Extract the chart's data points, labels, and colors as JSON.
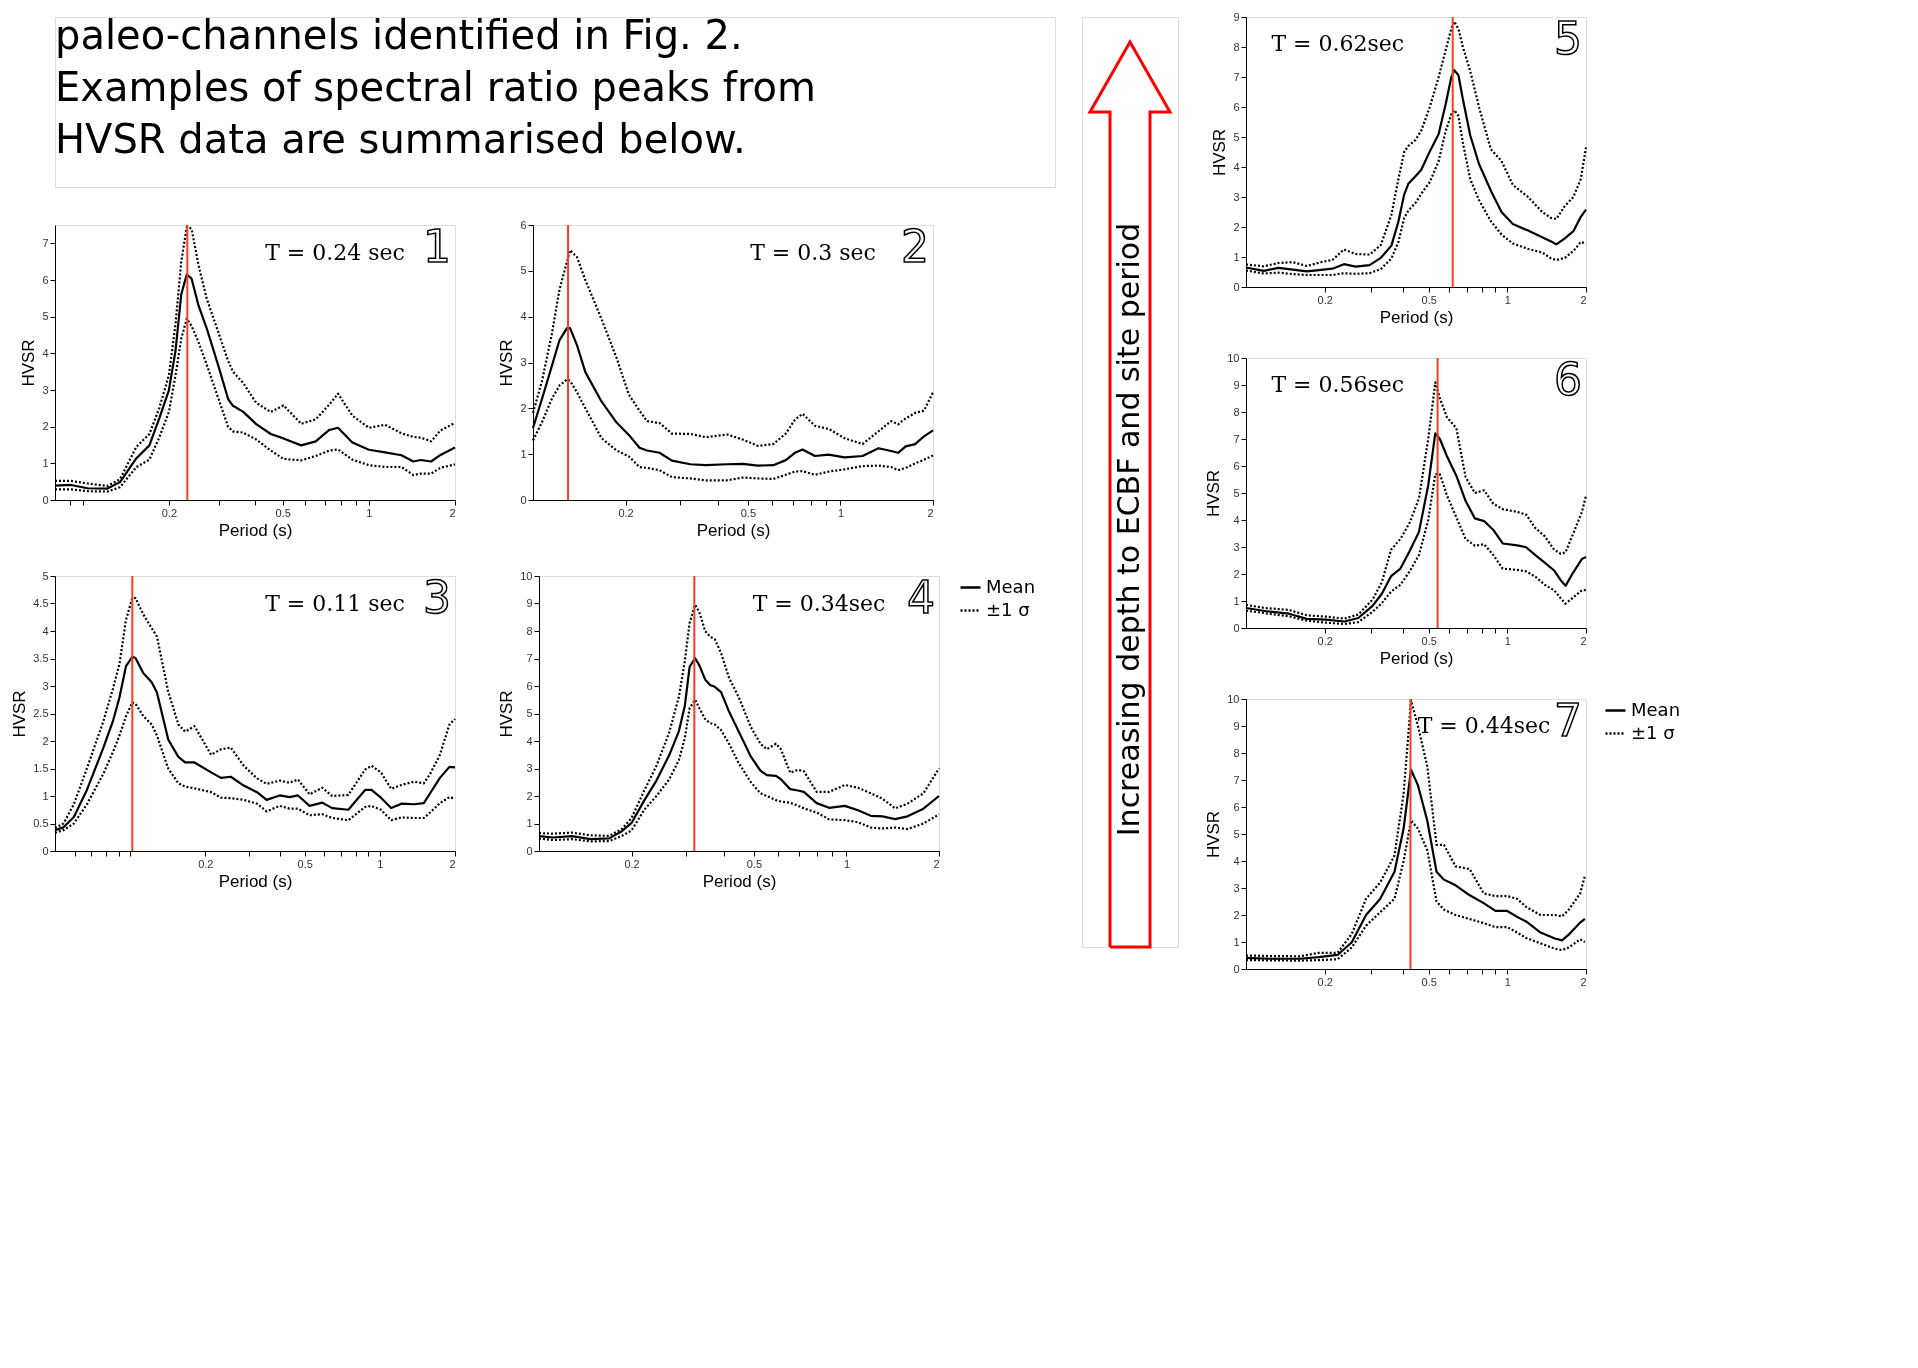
{
  "chart_data": [
    {
      "type": "other",
      "annotations": [
        "paleo-channels identified in Fig. 2.\nExamples of spectral ratio peaks from\nHVSR data are summarised below."
      ]
    },
    {
      "type": "line",
      "xlabel": "Period (s)",
      "ylabel": "HVSR",
      "log": "x",
      "grid": false,
      "xlim": [
        0.08,
        2
      ],
      "ylim": [
        0,
        7.5
      ],
      "xticks": [
        {
          "value": 0.09,
          "label": null
        },
        {
          "value": 0.1,
          "label": null
        },
        0.2,
        {
          "value": 0.3,
          "label": null
        },
        {
          "value": 0.4,
          "label": null
        },
        0.5,
        {
          "value": 0.6,
          "label": null
        },
        {
          "value": 0.7,
          "label": null
        },
        {
          "value": 0.8,
          "label": null
        },
        {
          "value": 0.9,
          "label": null
        },
        1,
        2
      ],
      "yticks": [
        0,
        1,
        2,
        3,
        4,
        5,
        6,
        7
      ],
      "ref_lines": [
        {
          "axis": "x",
          "value": 0.232,
          "color": "#ff3b1f"
        }
      ],
      "annotations": [
        "T = 0.24 sec",
        "1"
      ],
      "x": [
        0.08,
        0.091,
        0.104,
        0.122,
        0.135,
        0.154,
        0.171,
        0.185,
        0.2,
        0.211,
        0.221,
        0.231,
        0.24,
        0.254,
        0.271,
        0.297,
        0.322,
        0.335,
        0.363,
        0.404,
        0.454,
        0.503,
        0.58,
        0.652,
        0.727,
        0.78,
        0.876,
        1,
        1.14,
        1.3,
        1.43,
        1.52,
        1.65,
        1.78,
        2
      ],
      "series": [
        {
          "color": "#000000",
          "line_style": "solid",
          "values": [
            0.39,
            0.41,
            0.32,
            0.31,
            0.49,
            1.14,
            1.49,
            2.22,
            2.99,
            4.07,
            5.61,
            6.15,
            6.04,
            5.3,
            4.69,
            3.69,
            2.76,
            2.57,
            2.41,
            2.07,
            1.8,
            1.68,
            1.49,
            1.6,
            1.91,
            1.97,
            1.57,
            1.37,
            1.3,
            1.22,
            1.05,
            1.09,
            1.05,
            1.23,
            1.43
          ]
        },
        {
          "color": "#000000",
          "line_style": "dotted",
          "values": [
            0.52,
            0.52,
            0.45,
            0.38,
            0.57,
            1.45,
            1.8,
            2.5,
            3.4,
            4.8,
            6.5,
            7.45,
            7.4,
            6.4,
            5.5,
            4.6,
            3.8,
            3.5,
            3.2,
            2.65,
            2.4,
            2.58,
            2.08,
            2.2,
            2.6,
            2.9,
            2.3,
            1.97,
            2.05,
            1.82,
            1.72,
            1.7,
            1.6,
            1.9,
            2.1
          ]
        },
        {
          "color": "#000000",
          "line_style": "dotted",
          "values": [
            0.29,
            0.29,
            0.24,
            0.23,
            0.35,
            0.9,
            1.1,
            1.7,
            2.4,
            3.4,
            4.4,
            4.95,
            4.75,
            4.3,
            3.7,
            2.8,
            2.0,
            1.87,
            1.84,
            1.65,
            1.35,
            1.12,
            1.08,
            1.2,
            1.35,
            1.38,
            1.1,
            0.95,
            0.9,
            0.9,
            0.68,
            0.72,
            0.72,
            0.88,
            0.97
          ]
        }
      ]
    },
    {
      "type": "line",
      "xlabel": "Period (s)",
      "ylabel": "HVSR",
      "log": "x",
      "grid": false,
      "xlim": [
        0.1,
        2
      ],
      "ylim": [
        0,
        6
      ],
      "xticks": [
        0.2,
        {
          "value": 0.3,
          "label": null
        },
        {
          "value": 0.4,
          "label": null
        },
        0.5,
        {
          "value": 0.6,
          "label": null
        },
        {
          "value": 0.7,
          "label": null
        },
        {
          "value": 0.8,
          "label": null
        },
        {
          "value": 0.9,
          "label": null
        },
        1,
        2
      ],
      "yticks": [
        0,
        1,
        2,
        3,
        4,
        5,
        6
      ],
      "ref_lines": [
        {
          "axis": "x",
          "value": 0.13,
          "color": "#ff3b1f"
        }
      ],
      "annotations": [
        "T = 0.3 sec",
        "2"
      ],
      "x": [
        0.1,
        0.107,
        0.115,
        0.122,
        0.129,
        0.132,
        0.139,
        0.148,
        0.167,
        0.187,
        0.205,
        0.222,
        0.235,
        0.258,
        0.283,
        0.325,
        0.365,
        0.428,
        0.481,
        0.539,
        0.605,
        0.664,
        0.711,
        0.753,
        0.826,
        0.916,
        1.03,
        1.18,
        1.33,
        1.46,
        1.54,
        1.63,
        1.75,
        1.87,
        2
      ],
      "series": [
        {
          "color": "#000000",
          "line_style": "solid",
          "values": [
            1.57,
            2.21,
            2.91,
            3.49,
            3.75,
            3.75,
            3.38,
            2.79,
            2.15,
            1.69,
            1.42,
            1.14,
            1.08,
            1.03,
            0.86,
            0.78,
            0.76,
            0.78,
            0.79,
            0.75,
            0.76,
            0.87,
            1.03,
            1.1,
            0.96,
            0.99,
            0.93,
            0.96,
            1.13,
            1.07,
            1.03,
            1.17,
            1.22,
            1.39,
            1.52
          ]
        },
        {
          "color": "#000000",
          "line_style": "dotted",
          "values": [
            1.9,
            2.6,
            3.6,
            4.6,
            5.2,
            5.45,
            5.3,
            4.8,
            3.95,
            3.1,
            2.3,
            1.95,
            1.72,
            1.68,
            1.45,
            1.44,
            1.37,
            1.43,
            1.32,
            1.18,
            1.22,
            1.45,
            1.75,
            1.88,
            1.62,
            1.55,
            1.35,
            1.22,
            1.5,
            1.72,
            1.65,
            1.78,
            1.9,
            1.95,
            2.35
          ]
        },
        {
          "color": "#000000",
          "line_style": "dotted",
          "values": [
            1.3,
            1.7,
            2.2,
            2.5,
            2.63,
            2.6,
            2.35,
            2.0,
            1.35,
            1.08,
            0.95,
            0.72,
            0.7,
            0.65,
            0.5,
            0.47,
            0.43,
            0.43,
            0.49,
            0.47,
            0.46,
            0.55,
            0.62,
            0.63,
            0.55,
            0.62,
            0.67,
            0.74,
            0.75,
            0.72,
            0.65,
            0.7,
            0.8,
            0.88,
            0.97
          ]
        }
      ]
    },
    {
      "type": "line",
      "xlabel": "Period (s)",
      "ylabel": "HVSR",
      "log": "x",
      "grid": false,
      "xlim": [
        0.05,
        2
      ],
      "ylim": [
        0,
        5
      ],
      "xticks": [
        {
          "value": 0.06,
          "label": null
        },
        {
          "value": 0.07,
          "label": null
        },
        {
          "value": 0.08,
          "label": null
        },
        {
          "value": 0.09,
          "label": null
        },
        {
          "value": 0.1,
          "label": null
        },
        0.2,
        {
          "value": 0.3,
          "label": null
        },
        {
          "value": 0.4,
          "label": null
        },
        0.5,
        {
          "value": 0.6,
          "label": null
        },
        {
          "value": 0.7,
          "label": null
        },
        {
          "value": 0.8,
          "label": null
        },
        {
          "value": 0.9,
          "label": null
        },
        1,
        2
      ],
      "yticks": [
        0,
        0.5,
        1,
        1.5,
        2,
        2.5,
        3,
        3.5,
        4,
        4.5,
        5
      ],
      "ref_lines": [
        {
          "axis": "x",
          "value": 0.102,
          "color": "#ff3b1f"
        }
      ],
      "annotations": [
        "T = 0.11 sec",
        "3"
      ],
      "x": [
        0.05,
        0.0541,
        0.0595,
        0.0671,
        0.078,
        0.0853,
        0.0906,
        0.0962,
        0.102,
        0.105,
        0.113,
        0.122,
        0.128,
        0.142,
        0.156,
        0.166,
        0.181,
        0.211,
        0.231,
        0.253,
        0.285,
        0.322,
        0.352,
        0.397,
        0.435,
        0.47,
        0.523,
        0.588,
        0.644,
        0.748,
        0.873,
        0.926,
        1.01,
        1.11,
        1.22,
        1.37,
        1.5,
        1.59,
        1.74,
        1.9,
        2
      ],
      "series": [
        {
          "color": "#000000",
          "line_style": "solid",
          "values": [
            0.38,
            0.43,
            0.62,
            1.11,
            1.87,
            2.36,
            2.79,
            3.36,
            3.53,
            3.51,
            3.23,
            3.07,
            2.88,
            2.03,
            1.71,
            1.61,
            1.61,
            1.43,
            1.33,
            1.35,
            1.19,
            1.07,
            0.93,
            1.01,
            0.98,
            1.01,
            0.82,
            0.88,
            0.78,
            0.75,
            1.11,
            1.11,
            0.97,
            0.78,
            0.86,
            0.85,
            0.87,
            1.05,
            1.33,
            1.53,
            1.52
          ]
        },
        {
          "color": "#000000",
          "line_style": "dotted",
          "values": [
            0.42,
            0.5,
            0.85,
            1.5,
            2.35,
            2.95,
            3.4,
            4.2,
            4.6,
            4.6,
            4.3,
            4.05,
            3.9,
            2.9,
            2.3,
            2.17,
            2.27,
            1.75,
            1.85,
            1.88,
            1.55,
            1.32,
            1.22,
            1.28,
            1.24,
            1.3,
            1.03,
            1.15,
            1.0,
            1.02,
            1.48,
            1.55,
            1.43,
            1.13,
            1.2,
            1.26,
            1.23,
            1.4,
            1.75,
            2.3,
            2.4
          ]
        },
        {
          "color": "#000000",
          "line_style": "dotted",
          "values": [
            0.33,
            0.38,
            0.5,
            0.85,
            1.4,
            1.8,
            2.1,
            2.45,
            2.7,
            2.68,
            2.45,
            2.3,
            2.1,
            1.5,
            1.23,
            1.17,
            1.14,
            1.07,
            0.97,
            0.96,
            0.93,
            0.86,
            0.72,
            0.82,
            0.77,
            0.77,
            0.65,
            0.67,
            0.6,
            0.56,
            0.8,
            0.82,
            0.75,
            0.56,
            0.61,
            0.6,
            0.6,
            0.7,
            0.87,
            0.98,
            0.95
          ]
        }
      ]
    },
    {
      "type": "line",
      "xlabel": "Period (s)",
      "ylabel": "HVSR",
      "log": "x",
      "grid": false,
      "legend": "right",
      "xlim": [
        0.1,
        2
      ],
      "ylim": [
        0,
        10
      ],
      "xticks": [
        0.2,
        {
          "value": 0.3,
          "label": null
        },
        {
          "value": 0.4,
          "label": null
        },
        0.5,
        {
          "value": 0.6,
          "label": null
        },
        {
          "value": 0.7,
          "label": null
        },
        {
          "value": 0.8,
          "label": null
        },
        {
          "value": 0.9,
          "label": null
        },
        1,
        2
      ],
      "yticks": [
        0,
        1,
        2,
        3,
        4,
        5,
        6,
        7,
        8,
        9,
        10
      ],
      "ref_lines": [
        {
          "axis": "x",
          "value": 0.32,
          "color": "#ff3b1f"
        }
      ],
      "annotations": [
        "T = 0.34sec",
        "4"
      ],
      "x": [
        0.1,
        0.111,
        0.128,
        0.147,
        0.169,
        0.186,
        0.2,
        0.22,
        0.241,
        0.265,
        0.285,
        0.298,
        0.309,
        0.322,
        0.332,
        0.347,
        0.36,
        0.373,
        0.391,
        0.415,
        0.446,
        0.489,
        0.525,
        0.551,
        0.59,
        0.612,
        0.656,
        0.695,
        0.727,
        0.8,
        0.878,
        0.988,
        1.09,
        1.2,
        1.31,
        1.44,
        1.58,
        1.78,
        2
      ],
      "series": [
        {
          "name": "Mean",
          "color": "#000000",
          "line_style": "solid",
          "values": [
            0.54,
            0.49,
            0.54,
            0.43,
            0.46,
            0.72,
            1.02,
            1.84,
            2.56,
            3.48,
            4.35,
            5.27,
            6.7,
            7.01,
            6.76,
            6.24,
            6.04,
            5.97,
            5.78,
            5.07,
            4.35,
            3.43,
            2.92,
            2.76,
            2.73,
            2.61,
            2.25,
            2.2,
            2.15,
            1.74,
            1.57,
            1.64,
            1.48,
            1.28,
            1.26,
            1.16,
            1.26,
            1.54,
            2.0
          ]
        },
        {
          "name": "±1 σ",
          "color": "#000000",
          "line_style": "dotted",
          "values": [
            0.65,
            0.63,
            0.67,
            0.57,
            0.55,
            0.8,
            1.2,
            2.2,
            3.1,
            4.3,
            5.6,
            6.9,
            8.3,
            8.95,
            8.7,
            8.0,
            7.8,
            7.7,
            7.2,
            6.3,
            5.6,
            4.5,
            3.9,
            3.7,
            3.9,
            3.7,
            2.85,
            2.95,
            2.9,
            2.15,
            2.15,
            2.4,
            2.3,
            2.1,
            1.9,
            1.55,
            1.72,
            2.1,
            3.0
          ]
        },
        {
          "color": "#000000",
          "line_style": "dotted",
          "values": [
            0.45,
            0.4,
            0.43,
            0.35,
            0.36,
            0.55,
            0.75,
            1.5,
            2.0,
            2.6,
            3.3,
            4.1,
            5.2,
            5.5,
            5.2,
            4.8,
            4.65,
            4.6,
            4.4,
            3.9,
            3.2,
            2.5,
            2.1,
            2.0,
            1.85,
            1.8,
            1.75,
            1.65,
            1.55,
            1.4,
            1.15,
            1.12,
            1.05,
            0.85,
            0.82,
            0.85,
            0.8,
            1.0,
            1.33
          ]
        }
      ]
    },
    {
      "type": "other",
      "annotations": [
        "Increasing depth to ECBF and site period"
      ]
    },
    {
      "type": "line",
      "xlabel": "Period (s)",
      "ylabel": "HVSR",
      "log": "x",
      "grid": false,
      "xlim": [
        0.1,
        2
      ],
      "ylim": [
        0,
        9
      ],
      "xticks": [
        0.2,
        {
          "value": 0.3,
          "label": null
        },
        {
          "value": 0.4,
          "label": null
        },
        0.5,
        {
          "value": 0.6,
          "label": null
        },
        {
          "value": 0.7,
          "label": null
        },
        {
          "value": 0.8,
          "label": null
        },
        {
          "value": 0.9,
          "label": null
        },
        1,
        2
      ],
      "yticks": [
        0,
        1,
        2,
        3,
        4,
        5,
        6,
        7,
        8,
        9
      ],
      "ref_lines": [
        {
          "axis": "x",
          "value": 0.618,
          "color": "#ff3b1f"
        }
      ],
      "annotations": [
        "T = 0.62sec",
        "5"
      ],
      "x": [
        0.1,
        0.117,
        0.133,
        0.151,
        0.171,
        0.194,
        0.214,
        0.237,
        0.263,
        0.297,
        0.328,
        0.36,
        0.383,
        0.403,
        0.418,
        0.445,
        0.468,
        0.505,
        0.546,
        0.581,
        0.61,
        0.626,
        0.65,
        0.676,
        0.721,
        0.779,
        0.864,
        0.95,
        1.05,
        1.2,
        1.36,
        1.47,
        1.54,
        1.66,
        1.79,
        1.91,
        2
      ],
      "series": [
        {
          "color": "#000000",
          "line_style": "solid",
          "values": [
            0.65,
            0.54,
            0.64,
            0.58,
            0.52,
            0.57,
            0.61,
            0.76,
            0.68,
            0.73,
            0.97,
            1.38,
            2.18,
            3.08,
            3.44,
            3.69,
            3.9,
            4.52,
            5.1,
            6.1,
            6.98,
            7.23,
            7.06,
            6.26,
            5.06,
            4.1,
            3.22,
            2.5,
            2.1,
            1.88,
            1.66,
            1.52,
            1.42,
            1.62,
            1.86,
            2.34,
            2.58
          ]
        },
        {
          "color": "#000000",
          "line_style": "dotted",
          "values": [
            0.75,
            0.69,
            0.8,
            0.83,
            0.7,
            0.83,
            0.9,
            1.25,
            1.1,
            1.08,
            1.4,
            2.4,
            3.6,
            4.5,
            4.7,
            4.9,
            5.2,
            6.0,
            7.0,
            7.9,
            8.6,
            8.85,
            8.6,
            8.0,
            7.2,
            6.0,
            4.6,
            4.2,
            3.4,
            3.0,
            2.5,
            2.3,
            2.27,
            2.7,
            3.0,
            3.6,
            4.65
          ]
        },
        {
          "color": "#000000",
          "line_style": "dotted",
          "values": [
            0.55,
            0.45,
            0.48,
            0.43,
            0.4,
            0.4,
            0.4,
            0.46,
            0.44,
            0.46,
            0.6,
            0.95,
            1.5,
            2.3,
            2.55,
            2.8,
            3.1,
            3.5,
            4.2,
            5.2,
            5.75,
            5.9,
            5.7,
            4.8,
            3.6,
            2.9,
            2.2,
            1.75,
            1.45,
            1.27,
            1.15,
            0.95,
            0.9,
            0.97,
            1.2,
            1.5,
            1.45
          ]
        }
      ]
    },
    {
      "type": "line",
      "xlabel": "Period (s)",
      "ylabel": "HVSR",
      "log": "x",
      "grid": false,
      "xlim": [
        0.1,
        2
      ],
      "ylim": [
        0,
        10
      ],
      "xticks": [
        0.2,
        {
          "value": 0.3,
          "label": null
        },
        {
          "value": 0.4,
          "label": null
        },
        0.5,
        {
          "value": 0.6,
          "label": null
        },
        {
          "value": 0.7,
          "label": null
        },
        {
          "value": 0.8,
          "label": null
        },
        {
          "value": 0.9,
          "label": null
        },
        1,
        2
      ],
      "yticks": [
        0,
        1,
        2,
        3,
        4,
        5,
        6,
        7,
        8,
        9,
        10
      ],
      "ref_lines": [
        {
          "axis": "x",
          "value": 0.541,
          "color": "#ff3b1f"
        }
      ],
      "annotations": [
        "T = 0.56sec",
        "6"
      ],
      "x": [
        0.1,
        0.118,
        0.146,
        0.171,
        0.202,
        0.238,
        0.269,
        0.305,
        0.331,
        0.359,
        0.39,
        0.423,
        0.459,
        0.498,
        0.53,
        0.552,
        0.588,
        0.638,
        0.692,
        0.751,
        0.815,
        0.884,
        0.96,
        1.09,
        1.18,
        1.28,
        1.39,
        1.51,
        1.6,
        1.67,
        1.77,
        1.93,
        2
      ],
      "series": [
        {
          "color": "#000000",
          "line_style": "solid",
          "values": [
            0.74,
            0.63,
            0.53,
            0.34,
            0.31,
            0.24,
            0.37,
            0.82,
            1.27,
            1.92,
            2.2,
            2.85,
            3.56,
            5.28,
            7.21,
            7.0,
            6.35,
            5.64,
            4.71,
            4.06,
            3.96,
            3.63,
            3.13,
            3.06,
            2.99,
            2.7,
            2.42,
            2.13,
            1.77,
            1.56,
            1.99,
            2.56,
            2.63
          ]
        },
        {
          "color": "#000000",
          "line_style": "dotted",
          "values": [
            0.86,
            0.74,
            0.67,
            0.47,
            0.42,
            0.35,
            0.5,
            1.05,
            1.7,
            2.9,
            3.3,
            3.9,
            4.8,
            7.0,
            9.1,
            8.5,
            7.8,
            7.4,
            5.6,
            5.0,
            5.1,
            4.6,
            4.4,
            4.3,
            4.2,
            3.7,
            3.4,
            2.9,
            2.75,
            2.8,
            3.4,
            4.3,
            4.9
          ]
        },
        {
          "color": "#000000",
          "line_style": "dotted",
          "values": [
            0.64,
            0.55,
            0.43,
            0.27,
            0.2,
            0.15,
            0.22,
            0.6,
            0.92,
            1.35,
            1.6,
            2.1,
            2.7,
            4.0,
            5.7,
            5.7,
            4.9,
            4.1,
            3.3,
            3.05,
            3.1,
            2.7,
            2.2,
            2.15,
            2.1,
            1.9,
            1.6,
            1.4,
            1.1,
            0.9,
            1.1,
            1.4,
            1.4
          ]
        }
      ]
    },
    {
      "type": "line",
      "ylabel": "HVSR",
      "log": "x",
      "grid": false,
      "legend": "right",
      "xlim": [
        0.1,
        2
      ],
      "ylim": [
        0,
        10
      ],
      "xticks": [
        0.2,
        {
          "value": 0.3,
          "label": null
        },
        {
          "value": 0.4,
          "label": null
        },
        0.5,
        {
          "value": 0.6,
          "label": null
        },
        {
          "value": 0.7,
          "label": null
        },
        {
          "value": 0.8,
          "label": null
        },
        {
          "value": 0.9,
          "label": null
        },
        1,
        2
      ],
      "yticks": [
        0,
        1,
        2,
        3,
        4,
        5,
        6,
        7,
        8,
        9,
        10
      ],
      "ref_lines": [
        {
          "axis": "x",
          "value": 0.426,
          "color": "#ff3b1f"
        }
      ],
      "annotations": [
        "T = 0.44sec",
        "7"
      ],
      "x": [
        0.1,
        0.124,
        0.161,
        0.19,
        0.224,
        0.254,
        0.288,
        0.326,
        0.37,
        0.401,
        0.428,
        0.455,
        0.494,
        0.536,
        0.572,
        0.634,
        0.718,
        0.812,
        0.901,
        1.0,
        1.09,
        1.18,
        1.34,
        1.52,
        1.62,
        1.72,
        1.9,
        1.98
      ],
      "series": [
        {
          "name": "Mean",
          "color": "#000000",
          "line_style": "solid",
          "values": [
            0.41,
            0.38,
            0.38,
            0.44,
            0.52,
            0.99,
            2.0,
            2.59,
            3.6,
            5.2,
            7.38,
            6.8,
            5.49,
            3.6,
            3.31,
            3.1,
            2.73,
            2.44,
            2.15,
            2.15,
            1.93,
            1.76,
            1.35,
            1.13,
            1.06,
            1.28,
            1.72,
            1.86
          ]
        },
        {
          "name": "±1 σ",
          "color": "#000000",
          "line_style": "dotted",
          "values": [
            0.5,
            0.48,
            0.47,
            0.6,
            0.6,
            1.3,
            2.6,
            3.2,
            4.2,
            6.5,
            9.95,
            9.0,
            7.5,
            4.6,
            4.6,
            3.8,
            3.7,
            2.8,
            2.7,
            2.7,
            2.6,
            2.3,
            2.0,
            2.0,
            1.95,
            2.2,
            2.8,
            3.45
          ]
        },
        {
          "color": "#000000",
          "line_style": "dotted",
          "values": [
            0.33,
            0.32,
            0.31,
            0.33,
            0.36,
            0.8,
            1.6,
            2.1,
            2.6,
            4.0,
            5.5,
            5.2,
            4.4,
            2.5,
            2.2,
            2.0,
            1.85,
            1.7,
            1.55,
            1.55,
            1.35,
            1.15,
            0.95,
            0.75,
            0.7,
            0.8,
            1.1,
            1.0
          ]
        }
      ]
    }
  ]
}
